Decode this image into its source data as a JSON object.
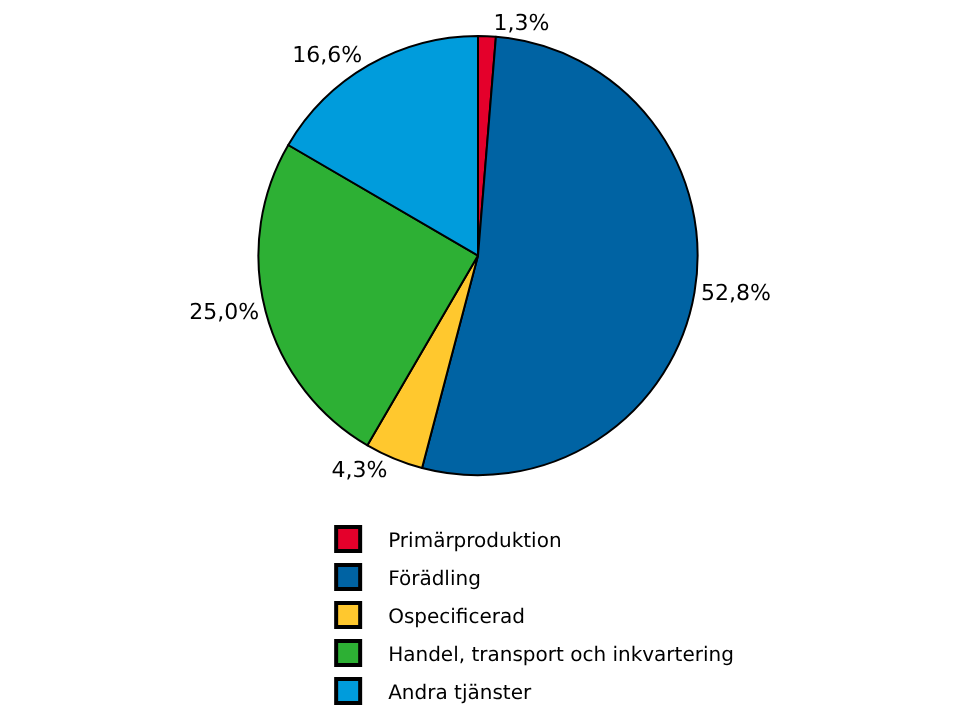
{
  "chart_data": {
    "type": "pie",
    "categories": [
      "Primärproduktion",
      "Förädling",
      "Ospecificerad",
      "Handel, transport och inkvartering",
      "Andra tjänster"
    ],
    "values": [
      1.3,
      52.8,
      4.3,
      25.0,
      16.6
    ],
    "value_labels": [
      "1,3%",
      "52,8%",
      "4,3%",
      "25,0%",
      "16,6%"
    ],
    "colors": [
      "#e4002b",
      "#0063a3",
      "#ffc82e",
      "#2db034",
      "#009cdc"
    ],
    "legend": "bottom"
  }
}
